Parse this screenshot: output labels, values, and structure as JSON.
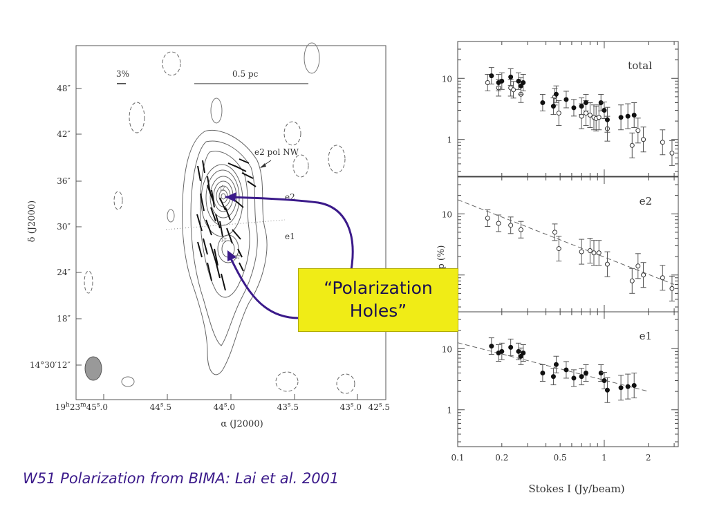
{
  "caption": "W51 Polarization from BIMA:  Lai et al. 2001",
  "callout": {
    "line1": "“Polarization",
    "line2": "Holes”"
  },
  "map": {
    "ra_ticks": [
      "19h23m45s.0",
      "44s.5",
      "44s.0",
      "43s.5",
      "43s.0",
      "42s.5"
    ],
    "dec_ticks": [
      "48″",
      "42″",
      "36″",
      "30″",
      "24″",
      "18″",
      "14°30′12″"
    ],
    "xlabel": "α (J2000)",
    "ylabel": "δ (J2000)",
    "scale_pct": "3%",
    "scale_pc": "0.5 pc",
    "labels": {
      "e2_pol_nw": "e2 pol NW",
      "e2": "e2",
      "e1": "e1"
    }
  },
  "chart_data": {
    "type": "scatter",
    "xscale": "log",
    "yscale": "log",
    "xlim": [
      0.1,
      3.2
    ],
    "ylim": [
      0.25,
      40
    ],
    "xlabel": "Stokes I (Jy/beam)",
    "ylabel": "p (%)",
    "xticks": [
      "0.1",
      "0.2",
      "0.5",
      "1",
      "2"
    ],
    "yticks": [
      "1",
      "10"
    ],
    "panels": [
      {
        "label": "total",
        "series": [
          {
            "marker": "open",
            "points": [
              [
                0.16,
                8.5
              ],
              [
                0.19,
                7.0
              ],
              [
                0.23,
                7.0
              ],
              [
                0.24,
                6.5
              ],
              [
                0.27,
                5.5
              ],
              [
                0.46,
                5.0
              ],
              [
                0.49,
                2.7
              ],
              [
                0.7,
                2.4
              ],
              [
                0.75,
                2.7
              ],
              [
                0.8,
                2.5
              ],
              [
                0.85,
                2.3
              ],
              [
                0.88,
                2.2
              ],
              [
                0.92,
                2.3
              ],
              [
                1.05,
                1.5
              ],
              [
                1.55,
                0.8
              ],
              [
                1.7,
                1.4
              ],
              [
                1.85,
                1.0
              ],
              [
                2.5,
                0.9
              ],
              [
                2.9,
                0.6
              ]
            ]
          },
          {
            "marker": "filled",
            "points": [
              [
                0.17,
                11.0
              ],
              [
                0.19,
                8.5
              ],
              [
                0.2,
                9.0
              ],
              [
                0.23,
                10.5
              ],
              [
                0.26,
                9.0
              ],
              [
                0.27,
                7.5
              ],
              [
                0.28,
                8.5
              ],
              [
                0.38,
                4.0
              ],
              [
                0.45,
                3.5
              ],
              [
                0.47,
                5.5
              ],
              [
                0.55,
                4.5
              ],
              [
                0.62,
                3.3
              ],
              [
                0.7,
                3.5
              ],
              [
                0.75,
                4.0
              ],
              [
                0.95,
                4.0
              ],
              [
                1.0,
                3.0
              ],
              [
                1.05,
                2.1
              ],
              [
                1.3,
                2.3
              ],
              [
                1.45,
                2.4
              ],
              [
                1.6,
                2.5
              ]
            ]
          }
        ]
      },
      {
        "label": "e2",
        "fit": [
          [
            0.1,
            17.0
          ],
          [
            3.0,
            0.7
          ]
        ],
        "series": [
          {
            "marker": "open",
            "points": [
              [
                0.16,
                8.5
              ],
              [
                0.19,
                7.0
              ],
              [
                0.23,
                6.5
              ],
              [
                0.27,
                5.5
              ],
              [
                0.46,
                5.0
              ],
              [
                0.49,
                2.7
              ],
              [
                0.7,
                2.4
              ],
              [
                0.8,
                2.5
              ],
              [
                0.85,
                2.3
              ],
              [
                0.92,
                2.3
              ],
              [
                1.05,
                1.5
              ],
              [
                1.55,
                0.8
              ],
              [
                1.7,
                1.4
              ],
              [
                1.85,
                1.0
              ],
              [
                2.5,
                0.9
              ],
              [
                2.9,
                0.6
              ]
            ]
          }
        ]
      },
      {
        "label": "e1",
        "fit": [
          [
            0.1,
            12.5
          ],
          [
            2.0,
            2.0
          ]
        ],
        "series": [
          {
            "marker": "filled",
            "points": [
              [
                0.17,
                11.0
              ],
              [
                0.19,
                8.5
              ],
              [
                0.2,
                9.0
              ],
              [
                0.23,
                10.5
              ],
              [
                0.26,
                9.0
              ],
              [
                0.27,
                7.5
              ],
              [
                0.28,
                8.5
              ],
              [
                0.38,
                4.0
              ],
              [
                0.45,
                3.5
              ],
              [
                0.47,
                5.5
              ],
              [
                0.55,
                4.5
              ],
              [
                0.62,
                3.3
              ],
              [
                0.7,
                3.5
              ],
              [
                0.75,
                4.0
              ],
              [
                0.95,
                4.0
              ],
              [
                1.0,
                3.0
              ],
              [
                1.05,
                2.1
              ],
              [
                1.3,
                2.3
              ],
              [
                1.45,
                2.4
              ],
              [
                1.6,
                2.5
              ]
            ]
          }
        ]
      }
    ]
  }
}
